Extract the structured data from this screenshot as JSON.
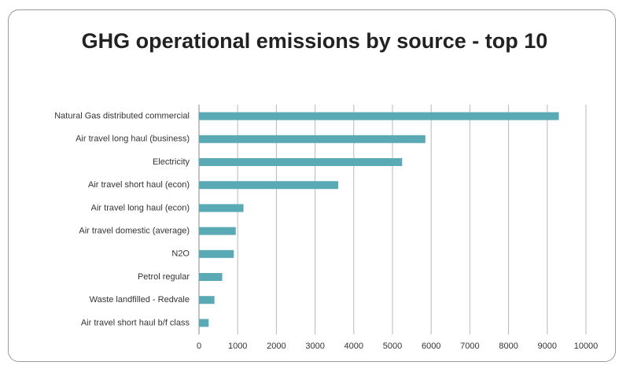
{
  "chart_data": {
    "type": "hbar",
    "title": "GHG operational emissions by source - top 10",
    "categories": [
      "Natural Gas distributed commercial",
      "Air travel long haul (business)",
      "Electricity",
      "Air travel short haul (econ)",
      "Air travel long haul (econ)",
      "Air travel domestic (average)",
      "N2O",
      "Petrol regular",
      "Waste landfilled - Redvale",
      "Air travel short haul b/f class"
    ],
    "values": [
      9300,
      5850,
      5250,
      3600,
      1150,
      950,
      900,
      600,
      400,
      250
    ],
    "color": "#5aaab6",
    "xlim": [
      0,
      10000
    ],
    "xticks": [
      0,
      1000,
      2000,
      3000,
      4000,
      5000,
      6000,
      7000,
      8000,
      9000,
      10000
    ],
    "grid": true
  }
}
